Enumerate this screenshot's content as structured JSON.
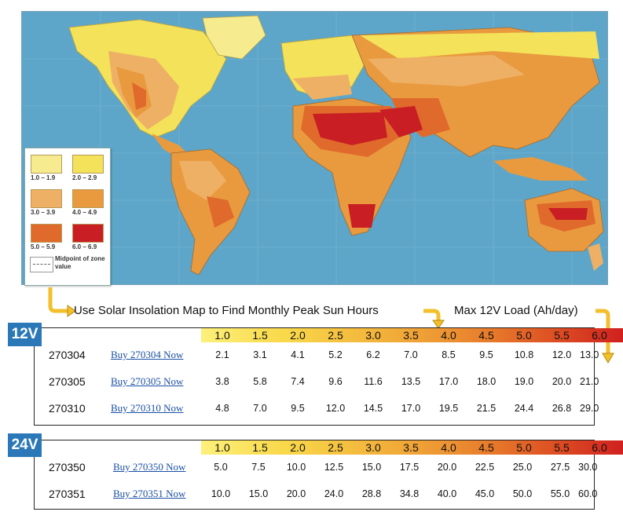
{
  "legend": {
    "ranges": [
      "1.0 – 1.9",
      "2.0 – 2.9",
      "3.0 – 3.9",
      "4.0 – 4.9",
      "5.0 – 5.9",
      "6.0 – 6.9"
    ],
    "colors": [
      "#f6ec8f",
      "#f3e25a",
      "#eeb065",
      "#e99a3e",
      "#e06a2c",
      "#c81e24"
    ],
    "midpoint_label": "Midpoint of zone value"
  },
  "caption": "Use Solar Insolation Map to Find Monthly Peak Sun Hours",
  "max_load_label": "Max 12V Load (Ah/day)",
  "tables": [
    {
      "voltage": "12V",
      "headers": [
        "1.0",
        "1.5",
        "2.0",
        "2.5",
        "3.0",
        "3.5",
        "4.0",
        "4.5",
        "5.0",
        "5.5",
        "6.0"
      ],
      "rows": [
        {
          "model": "270304",
          "link": "Buy 270304 Now",
          "values": [
            "2.1",
            "3.1",
            "4.1",
            "5.2",
            "6.2",
            "7.0",
            "8.5",
            "9.5",
            "10.8",
            "12.0",
            "13.0"
          ]
        },
        {
          "model": "270305",
          "link": "Buy 270305 Now",
          "values": [
            "3.8",
            "5.8",
            "7.4",
            "9.6",
            "11.6",
            "13.5",
            "17.0",
            "18.0",
            "19.0",
            "20.0",
            "21.0"
          ]
        },
        {
          "model": "270310",
          "link": "Buy 270310 Now",
          "values": [
            "4.8",
            "7.0",
            "9.5",
            "12.0",
            "14.5",
            "17.0",
            "19.5",
            "21.5",
            "24.4",
            "26.8",
            "29.0"
          ]
        }
      ]
    },
    {
      "voltage": "24V",
      "headers": [
        "1.0",
        "1.5",
        "2.0",
        "2.5",
        "3.0",
        "3.5",
        "4.0",
        "4.5",
        "5.0",
        "5.5",
        "6.0"
      ],
      "rows": [
        {
          "model": "270350",
          "link": "Buy 270350 Now",
          "values": [
            "5.0",
            "7.5",
            "10.0",
            "12.5",
            "15.0",
            "17.5",
            "20.0",
            "22.5",
            "25.0",
            "27.5",
            "30.0"
          ]
        },
        {
          "model": "270351",
          "link": "Buy 270351 Now",
          "values": [
            "10.0",
            "15.0",
            "20.0",
            "24.0",
            "28.8",
            "34.8",
            "40.0",
            "45.0",
            "50.0",
            "55.0",
            "60.0"
          ]
        }
      ]
    }
  ]
}
